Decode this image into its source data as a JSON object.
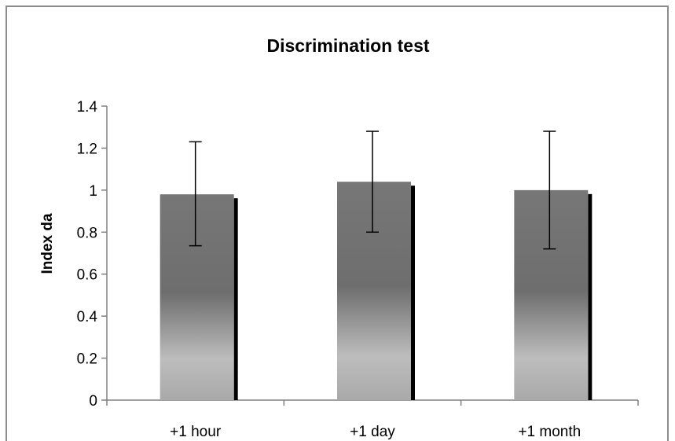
{
  "chart_data": {
    "type": "bar",
    "title": "Discrimination test",
    "xlabel": "",
    "ylabel": "Index da",
    "categories": [
      "+1 hour",
      "+1 day",
      "+1 month"
    ],
    "values": [
      0.98,
      1.04,
      1.0
    ],
    "error_upper": [
      1.23,
      1.28,
      1.28
    ],
    "error_lower": [
      0.735,
      0.8,
      0.72
    ],
    "ylim": [
      0,
      1.4
    ],
    "yticks": [
      "0",
      "0.2",
      "0.4",
      "0.6",
      "0.8",
      "1",
      "1.2",
      "1.4"
    ],
    "ytick_values": [
      0,
      0.2,
      0.4,
      0.6,
      0.8,
      1.0,
      1.2,
      1.4
    ],
    "grid": false,
    "legend": "none",
    "colors": {
      "bar_top": "#777777",
      "bar_mid": "#6d6d6d",
      "bar_light": "#bdbdbd",
      "bar_shadow": "#000000",
      "axis": "#808080",
      "frame": "#8c8c8c"
    }
  }
}
